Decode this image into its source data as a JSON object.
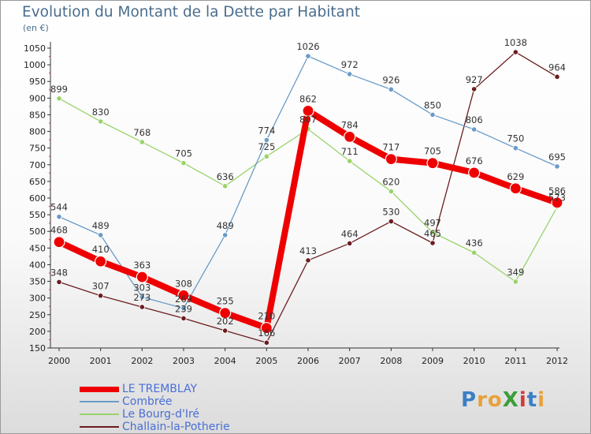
{
  "header": {
    "title": "Evolution du Montant de la Dette par Habitant",
    "unit": "(en €)"
  },
  "logo": {
    "text": "ProXiti",
    "letters": [
      "P",
      "r",
      "o",
      "X",
      "i",
      "t",
      "i"
    ],
    "colors": [
      "#3b7fc4",
      "#e8a13a",
      "#e8a13a",
      "#3a9e3a",
      "#d23b3b",
      "#3b7fc4",
      "#e8a13a"
    ]
  },
  "chart_data": {
    "type": "line",
    "title": "Evolution du Montant de la Dette par Habitant",
    "ylabel": "(en €)",
    "xlabel": "",
    "x": [
      "2000",
      "2001",
      "2002",
      "2003",
      "2004",
      "2005",
      "2006",
      "2007",
      "2008",
      "2009",
      "2010",
      "2011",
      "2012"
    ],
    "ylim": [
      150,
      1050
    ],
    "yticks": [
      150,
      200,
      250,
      300,
      350,
      400,
      450,
      500,
      550,
      600,
      650,
      700,
      750,
      800,
      850,
      900,
      950,
      1000,
      1050
    ],
    "grid": false,
    "legend": "bottom-left",
    "series": [
      {
        "name": "LE TREMBLAY",
        "color": "#ee0000",
        "width": 8,
        "marker": 7,
        "values": [
          468,
          410,
          363,
          308,
          255,
          210,
          862,
          784,
          717,
          705,
          676,
          629,
          586
        ]
      },
      {
        "name": "Combrée",
        "color": "#6a9bc8",
        "width": 1.3,
        "marker": 3.2,
        "values": [
          544,
          489,
          303,
          269,
          489,
          774,
          1026,
          972,
          926,
          850,
          806,
          750,
          695
        ]
      },
      {
        "name": "Le Bourg-d'Iré",
        "color": "#99d36b",
        "width": 1.3,
        "marker": 3.2,
        "values": [
          899,
          830,
          768,
          705,
          636,
          725,
          807,
          711,
          620,
          497,
          436,
          349,
          573
        ]
      },
      {
        "name": "Challain-la-Potherie",
        "color": "#6b1d20",
        "width": 1.3,
        "marker": 3.2,
        "values": [
          348,
          307,
          273,
          239,
          202,
          166,
          413,
          464,
          530,
          465,
          927,
          1038,
          964
        ]
      }
    ]
  }
}
